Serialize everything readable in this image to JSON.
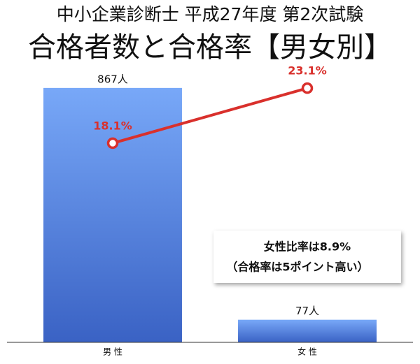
{
  "chart_data": {
    "type": "bar",
    "title": "中小企業診断士  平成27年度  第2次試験",
    "subtitle": "合格者数と合格率【男女別】",
    "categories": [
      "男 性",
      "女 性"
    ],
    "values": [
      867,
      77
    ],
    "value_labels": [
      "867人",
      "77人"
    ],
    "color": "#4f84e0",
    "ylim": [
      0,
      900
    ],
    "line": {
      "type": "line",
      "values": [
        18.1,
        23.1
      ],
      "value_labels": [
        "18.1%",
        "23.1%"
      ],
      "color": "#d9302c",
      "axis": "y2"
    },
    "y2lim": [
      0,
      24
    ],
    "annotations": [
      "女性比率は8.9%",
      "（合格率は5ポイント高い）"
    ]
  }
}
